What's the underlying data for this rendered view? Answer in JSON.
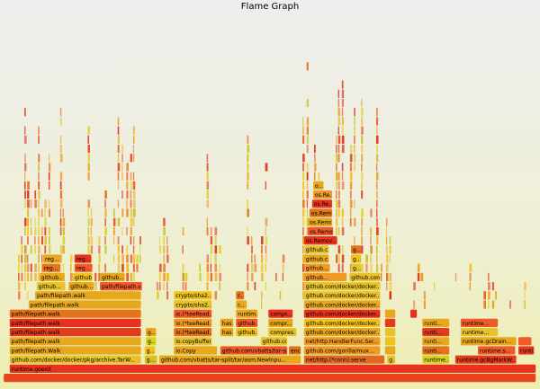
{
  "title": "Flame Graph",
  "palette": [
    "#f05a28",
    "#e8a81e",
    "#e33b1d",
    "#d8d21d",
    "#f2c21c",
    "#e4731b",
    "#ef9a22",
    "#dc2c18",
    "#c8c320"
  ],
  "frames": [
    {
      "label": "",
      "x0": 0.007,
      "x1": 0.993,
      "depth": 0,
      "color": "#e84420"
    },
    {
      "label": "runtime.goexit",
      "x0": 0.018,
      "x1": 0.993,
      "depth": 1,
      "color": "#e8321f"
    },
    {
      "label": "github.com/docker/docker/pkg/archive.TarW...",
      "x0": 0.018,
      "x1": 0.262,
      "depth": 2,
      "color": "#e8c22a"
    },
    {
      "label": "g...",
      "x0": 0.268,
      "x1": 0.292,
      "depth": 2,
      "color": "#d8c21d"
    },
    {
      "label": "github.com/vbatts/tar-split/tar/asm.NewInpu...",
      "x0": 0.295,
      "x1": 0.558,
      "depth": 2,
      "color": "#e8a81e"
    },
    {
      "label": "net/http.(*conn).serve",
      "x0": 0.563,
      "x1": 0.713,
      "depth": 2,
      "color": "#e06a22"
    },
    {
      "label": "g...",
      "x0": 0.717,
      "x1": 0.733,
      "depth": 2,
      "color": "#e8c22a"
    },
    {
      "label": "runtime...",
      "x0": 0.782,
      "x1": 0.833,
      "depth": 2,
      "color": "#d8d21d"
    },
    {
      "label": "runtime.gcBgMarkW...",
      "x0": 0.843,
      "x1": 0.957,
      "depth": 2,
      "color": "#e33b1d"
    },
    {
      "label": "path/filepath.Walk",
      "x0": 0.018,
      "x1": 0.262,
      "depth": 3,
      "color": "#e8a81e"
    },
    {
      "label": "g...",
      "x0": 0.268,
      "x1": 0.288,
      "depth": 3,
      "color": "#f2c21c"
    },
    {
      "label": "io.Copy",
      "x0": 0.322,
      "x1": 0.403,
      "depth": 3,
      "color": "#e8a81e"
    },
    {
      "label": "github.com/vbatts/tar-spli...",
      "x0": 0.408,
      "x1": 0.533,
      "depth": 3,
      "color": "#f05a28"
    },
    {
      "label": "encoding/j...",
      "x0": 0.535,
      "x1": 0.558,
      "depth": 3,
      "color": "#e4731b"
    },
    {
      "label": "github.com/gorilla/mux...",
      "x0": 0.563,
      "x1": 0.705,
      "depth": 3,
      "color": "#ef9a22"
    },
    {
      "label": "",
      "x0": 0.713,
      "x1": 0.733,
      "depth": 3,
      "color": "#e8a81e"
    },
    {
      "label": "runti...",
      "x0": 0.782,
      "x1": 0.833,
      "depth": 3,
      "color": "#e4731b"
    },
    {
      "label": "runtime.s...",
      "x0": 0.885,
      "x1": 0.955,
      "depth": 3,
      "color": "#f05a28"
    },
    {
      "label": "runtime...",
      "x0": 0.96,
      "x1": 0.99,
      "depth": 3,
      "color": "#e33b1d"
    },
    {
      "label": "path/filepath.walk",
      "x0": 0.018,
      "x1": 0.262,
      "depth": 4,
      "color": "#e8a81e"
    },
    {
      "label": "g...",
      "x0": 0.27,
      "x1": 0.29,
      "depth": 4,
      "color": "#d8d21d"
    },
    {
      "label": "io.copyBuffer",
      "x0": 0.322,
      "x1": 0.393,
      "depth": 4,
      "color": "#e8c22a"
    },
    {
      "label": "github.com...",
      "x0": 0.483,
      "x1": 0.533,
      "depth": 4,
      "color": "#e8c22a"
    },
    {
      "label": "net/http.HandlerFunc.Ser...",
      "x0": 0.563,
      "x1": 0.705,
      "depth": 4,
      "color": "#ef9a22"
    },
    {
      "label": "",
      "x0": 0.713,
      "x1": 0.733,
      "depth": 4,
      "color": "#f2c21c"
    },
    {
      "label": "runti...",
      "x0": 0.782,
      "x1": 0.833,
      "depth": 4,
      "color": "#e8a81e"
    },
    {
      "label": "runtime.gcDrain...",
      "x0": 0.853,
      "x1": 0.957,
      "depth": 4,
      "color": "#e8a81e"
    },
    {
      "label": "",
      "x0": 0.96,
      "x1": 0.985,
      "depth": 4,
      "color": "#f05a28"
    },
    {
      "label": "path/filepath.walk",
      "x0": 0.018,
      "x1": 0.262,
      "depth": 5,
      "color": "#e33b1d"
    },
    {
      "label": "g...",
      "x0": 0.27,
      "x1": 0.29,
      "depth": 5,
      "color": "#e8a81e"
    },
    {
      "label": "io.(*teeRead...",
      "x0": 0.322,
      "x1": 0.393,
      "depth": 5,
      "color": "#e4731b"
    },
    {
      "label": "has...",
      "x0": 0.408,
      "x1": 0.433,
      "depth": 5,
      "color": "#e8a81e"
    },
    {
      "label": "github.com/v...",
      "x0": 0.437,
      "x1": 0.478,
      "depth": 5,
      "color": "#f2c21c"
    },
    {
      "label": "compres...",
      "x0": 0.497,
      "x1": 0.55,
      "depth": 5,
      "color": "#e8c22a"
    },
    {
      "label": "github.com/docker/docker...",
      "x0": 0.563,
      "x1": 0.705,
      "depth": 5,
      "color": "#e8a81e"
    },
    {
      "label": "",
      "x0": 0.713,
      "x1": 0.733,
      "depth": 5,
      "color": "#e8c22a"
    },
    {
      "label": "runti...",
      "x0": 0.782,
      "x1": 0.833,
      "depth": 5,
      "color": "#e33b1d"
    },
    {
      "label": "runtime...",
      "x0": 0.853,
      "x1": 0.923,
      "depth": 5,
      "color": "#e8c22a"
    },
    {
      "label": "path/filepath.walk",
      "x0": 0.018,
      "x1": 0.262,
      "depth": 6,
      "color": "#e8321f"
    },
    {
      "label": "io.(*teeRead...",
      "x0": 0.322,
      "x1": 0.393,
      "depth": 6,
      "color": "#ef9a22"
    },
    {
      "label": "has...",
      "x0": 0.408,
      "x1": 0.433,
      "depth": 6,
      "color": "#e8a81e"
    },
    {
      "label": "github.com/v...",
      "x0": 0.437,
      "x1": 0.478,
      "depth": 6,
      "color": "#f05a28"
    },
    {
      "label": "compr...",
      "x0": 0.497,
      "x1": 0.543,
      "depth": 6,
      "color": "#e8a81e"
    },
    {
      "label": "github.com/docker/docker...",
      "x0": 0.563,
      "x1": 0.705,
      "depth": 6,
      "color": "#f2c21c"
    },
    {
      "label": "",
      "x0": 0.713,
      "x1": 0.733,
      "depth": 6,
      "color": "#e33b1d"
    },
    {
      "label": "runti...",
      "x0": 0.782,
      "x1": 0.833,
      "depth": 6,
      "color": "#e8a81e"
    },
    {
      "label": "runtime...",
      "x0": 0.853,
      "x1": 0.923,
      "depth": 6,
      "color": "#f05a28"
    },
    {
      "label": "path/filepath.walk",
      "x0": 0.018,
      "x1": 0.262,
      "depth": 7,
      "color": "#e4731b"
    },
    {
      "label": "io.(*teeRead...",
      "x0": 0.322,
      "x1": 0.393,
      "depth": 7,
      "color": "#f05a28"
    },
    {
      "label": "runtim...",
      "x0": 0.437,
      "x1": 0.478,
      "depth": 7,
      "color": "#e8a81e"
    },
    {
      "label": "compr...",
      "x0": 0.497,
      "x1": 0.543,
      "depth": 7,
      "color": "#e8321f"
    },
    {
      "label": "github.com/docker/docker...",
      "x0": 0.563,
      "x1": 0.705,
      "depth": 7,
      "color": "#e8321f"
    },
    {
      "label": "",
      "x0": 0.713,
      "x1": 0.733,
      "depth": 7,
      "color": "#e8a81e"
    },
    {
      "label": "",
      "x0": 0.76,
      "x1": 0.773,
      "depth": 7,
      "color": "#e8321f"
    },
    {
      "label": "path/filepath.walk",
      "x0": 0.053,
      "x1": 0.262,
      "depth": 8,
      "color": "#e8a81e"
    },
    {
      "label": "crypto/sha2...",
      "x0": 0.322,
      "x1": 0.393,
      "depth": 8,
      "color": "#e8c22a"
    },
    {
      "label": "r...",
      "x0": 0.437,
      "x1": 0.458,
      "depth": 8,
      "color": "#e8a81e"
    },
    {
      "label": "github.com/docker/docker...",
      "x0": 0.563,
      "x1": 0.705,
      "depth": 8,
      "color": "#e8a81e"
    },
    {
      "label": "path/filepath.walk",
      "x0": 0.065,
      "x1": 0.262,
      "depth": 9,
      "color": "#e8a81e"
    },
    {
      "label": "crypto/sha2...",
      "x0": 0.322,
      "x1": 0.393,
      "depth": 9,
      "color": "#f2c21c"
    },
    {
      "label": "r...",
      "x0": 0.437,
      "x1": 0.453,
      "depth": 9,
      "color": "#e4731b"
    },
    {
      "label": "github.com/docker/docker...",
      "x0": 0.563,
      "x1": 0.705,
      "depth": 9,
      "color": "#e8c22a"
    },
    {
      "label": "github...",
      "x0": 0.068,
      "x1": 0.122,
      "depth": 10,
      "color": "#e8c22a"
    },
    {
      "label": "github...",
      "x0": 0.127,
      "x1": 0.175,
      "depth": 10,
      "color": "#e8a81e"
    },
    {
      "label": "path/filepath.walk",
      "x0": 0.185,
      "x1": 0.262,
      "depth": 10,
      "color": "#f05a28"
    },
    {
      "label": "github.com/docker/docker...",
      "x0": 0.563,
      "x1": 0.705,
      "depth": 10,
      "color": "#e8c22a"
    },
    {
      "label": "github...",
      "x0": 0.073,
      "x1": 0.118,
      "depth": 11,
      "color": "#e8a81e"
    },
    {
      "label": "github...",
      "x0": 0.135,
      "x1": 0.172,
      "depth": 11,
      "color": "#f2c21c"
    },
    {
      "label": "github...",
      "x0": 0.185,
      "x1": 0.232,
      "depth": 11,
      "color": "#e8a81e"
    },
    {
      "label": "github...",
      "x0": 0.563,
      "x1": 0.643,
      "depth": 11,
      "color": "#ef9a22"
    },
    {
      "label": "github.com/d...",
      "x0": 0.647,
      "x1": 0.705,
      "depth": 11,
      "color": "#e8c22a"
    },
    {
      "label": "reg...",
      "x0": 0.078,
      "x1": 0.113,
      "depth": 12,
      "color": "#e4731b"
    },
    {
      "label": "reg...",
      "x0": 0.138,
      "x1": 0.172,
      "depth": 12,
      "color": "#f05a28"
    },
    {
      "label": "github...",
      "x0": 0.563,
      "x1": 0.612,
      "depth": 12,
      "color": "#ef9a22"
    },
    {
      "label": "g...",
      "x0": 0.65,
      "x1": 0.67,
      "depth": 12,
      "color": "#e8c22a"
    },
    {
      "label": "reg...",
      "x0": 0.08,
      "x1": 0.113,
      "depth": 13,
      "color": "#e8a81e"
    },
    {
      "label": "reg...",
      "x0": 0.138,
      "x1": 0.17,
      "depth": 13,
      "color": "#e8321f"
    },
    {
      "label": "github.c...",
      "x0": 0.563,
      "x1": 0.61,
      "depth": 13,
      "color": "#e8a81e"
    },
    {
      "label": "g...",
      "x0": 0.65,
      "x1": 0.67,
      "depth": 13,
      "color": "#f2c21c"
    },
    {
      "label": "github.c...",
      "x0": 0.563,
      "x1": 0.61,
      "depth": 14,
      "color": "#e8c22a"
    },
    {
      "label": "g...",
      "x0": 0.65,
      "x1": 0.67,
      "depth": 14,
      "color": "#e4731b"
    },
    {
      "label": "os.Remov...",
      "x0": 0.563,
      "x1": 0.625,
      "depth": 15,
      "color": "#e8321f"
    },
    {
      "label": "os.Remo...",
      "x0": 0.57,
      "x1": 0.618,
      "depth": 16,
      "color": "#f05a28"
    },
    {
      "label": "os.Remo...",
      "x0": 0.57,
      "x1": 0.616,
      "depth": 17,
      "color": "#e8a81e"
    },
    {
      "label": "os.Remo...",
      "x0": 0.573,
      "x1": 0.616,
      "depth": 18,
      "color": "#e4731b"
    },
    {
      "label": "os.Re...",
      "x0": 0.578,
      "x1": 0.616,
      "depth": 19,
      "color": "#e8321f"
    },
    {
      "label": "os.Re...",
      "x0": 0.58,
      "x1": 0.616,
      "depth": 20,
      "color": "#ef9a22"
    },
    {
      "label": "o...",
      "x0": 0.58,
      "x1": 0.6,
      "depth": 21,
      "color": "#e8a81e"
    }
  ]
}
